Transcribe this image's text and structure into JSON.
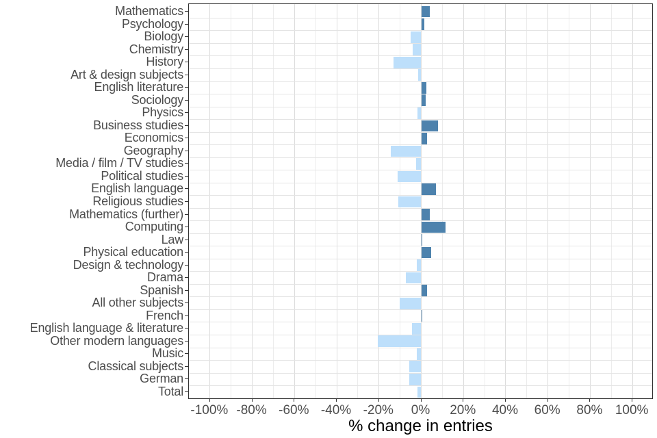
{
  "chart_data": {
    "type": "bar",
    "orientation": "horizontal",
    "title": "",
    "xlabel": "% change in entries",
    "ylabel": "",
    "grid": true,
    "xlim": [
      -110,
      110
    ],
    "x_ticks": [
      -100,
      -80,
      -60,
      -40,
      -20,
      0,
      20,
      40,
      60,
      80,
      100
    ],
    "x_tick_labels": [
      "-100%",
      "-80%",
      "-60%",
      "-40%",
      "-20%",
      "0%",
      "20%",
      "40%",
      "60%",
      "80%",
      "100%"
    ],
    "x_minor_step": 10,
    "categories": [
      "Mathematics",
      "Psychology",
      "Biology",
      "Chemistry",
      "History",
      "Art & design subjects",
      "English literature",
      "Sociology",
      "Physics",
      "Business studies",
      "Economics",
      "Geography",
      "Media / film / TV studies",
      "Political studies",
      "English language",
      "Religious studies",
      "Mathematics (further)",
      "Computing",
      "Law",
      "Physical education",
      "Design & technology",
      "Drama",
      "Spanish",
      "All other subjects",
      "French",
      "English language & literature",
      "Other modern languages",
      "Music",
      "Classical subjects",
      "German",
      "Total"
    ],
    "values": [
      4.2,
      1.4,
      -5.0,
      -4.1,
      -13.2,
      -1.5,
      2.4,
      2.1,
      -1.7,
      8.0,
      2.6,
      -14.4,
      -2.4,
      -11.2,
      6.9,
      -10.7,
      4.1,
      11.4,
      0.6,
      4.6,
      -2.1,
      -7.2,
      2.9,
      -10.2,
      0.6,
      -4.4,
      -20.5,
      -2.0,
      -5.8,
      -5.8,
      -1.8
    ],
    "colors": {
      "positive": "#4D82AD",
      "negative": "#BDDFFB",
      "grid_major": "#dcdcdc",
      "grid_minor": "#ececec",
      "grid_row": "#e4e4e4",
      "panel_border": "#333333",
      "axis_text": "#4d4d4d",
      "axis_title": "#000000"
    },
    "legend": "none"
  }
}
